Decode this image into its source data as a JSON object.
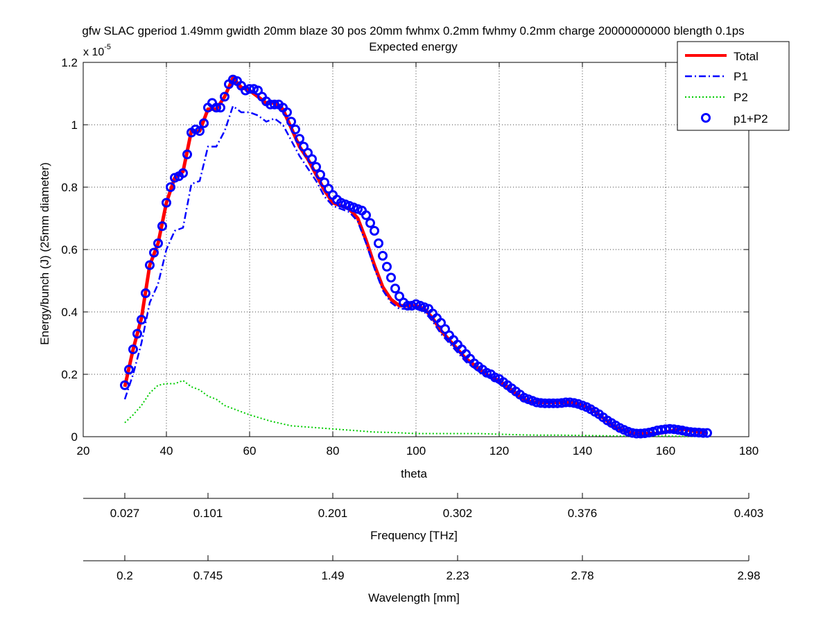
{
  "chart_data": {
    "type": "line",
    "title": "gfw SLAC gperiod 1.49mm gwidth 20mm blaze 30 pos 20mm fwhmx 0.2mm fwhmy 0.2mm charge 20000000000 blength 0.1ps",
    "subtitle": "Expected energy",
    "xlabel": "theta",
    "ylabel": "Energy/bunch (J) (25mm diameter)",
    "y_multiplier_base": "x 10",
    "y_multiplier_exp": "-5",
    "xlim": [
      20,
      180
    ],
    "ylim": [
      0,
      1.2
    ],
    "xticks": [
      20,
      40,
      60,
      80,
      100,
      120,
      140,
      160,
      180
    ],
    "yticks": [
      0,
      0.2,
      0.4,
      0.6,
      0.8,
      1,
      1.2
    ],
    "xtick_labels": [
      "20",
      "40",
      "60",
      "80",
      "100",
      "120",
      "140",
      "160",
      "180"
    ],
    "ytick_labels": [
      "0",
      "0.2",
      "0.4",
      "0.6",
      "0.8",
      "1",
      "1.2"
    ],
    "grid": true,
    "legend_position": "top-right",
    "colors": {
      "total": "#ff0000",
      "p1": "#0000ff",
      "p2": "#00cc00",
      "p1p2": "#0000ff"
    },
    "series": [
      {
        "name": "Total",
        "style": "solid-thick",
        "x": [
          30,
          32,
          34,
          36,
          38,
          40,
          42,
          44,
          46,
          48,
          50,
          52,
          54,
          56,
          58,
          60,
          62,
          64,
          66,
          68,
          70,
          72,
          74,
          76,
          78,
          80,
          82,
          84,
          86,
          88,
          90,
          92,
          94,
          96,
          98,
          100,
          102,
          104,
          106,
          108,
          110,
          112,
          114,
          116,
          118,
          120,
          122,
          124,
          126,
          128,
          130,
          132,
          134,
          136,
          138,
          140,
          142,
          144,
          146,
          148,
          150,
          152,
          154,
          156,
          158,
          160,
          162,
          164,
          166,
          168,
          170
        ],
        "values": [
          0.16,
          0.28,
          0.38,
          0.55,
          0.62,
          0.75,
          0.83,
          0.85,
          0.98,
          0.98,
          1.05,
          1.05,
          1.09,
          1.15,
          1.12,
          1.11,
          1.09,
          1.07,
          1.07,
          1.05,
          0.99,
          0.93,
          0.89,
          0.84,
          0.79,
          0.75,
          0.74,
          0.73,
          0.7,
          0.63,
          0.55,
          0.48,
          0.44,
          0.42,
          0.42,
          0.42,
          0.41,
          0.38,
          0.34,
          0.31,
          0.28,
          0.25,
          0.23,
          0.21,
          0.19,
          0.18,
          0.16,
          0.14,
          0.12,
          0.11,
          0.11,
          0.11,
          0.11,
          0.11,
          0.11,
          0.1,
          0.09,
          0.07,
          0.05,
          0.03,
          0.02,
          0.01,
          0.01,
          0.01,
          0.01,
          0.015,
          0.02,
          0.025,
          0.02,
          0.015,
          0.012
        ]
      },
      {
        "name": "P1",
        "style": "dash-dot",
        "x": [
          30,
          32,
          34,
          36,
          38,
          40,
          42,
          44,
          46,
          48,
          50,
          52,
          54,
          56,
          58,
          60,
          62,
          64,
          66,
          68,
          70,
          72,
          74,
          76,
          78,
          80,
          82,
          84,
          86,
          88,
          90,
          92,
          94,
          96,
          98,
          100,
          102,
          104,
          106,
          108,
          110,
          112,
          114,
          116,
          118,
          120,
          122,
          124,
          126,
          128,
          130,
          132,
          134,
          136,
          138,
          140,
          142,
          144,
          146,
          148,
          150,
          152,
          154,
          156,
          158,
          160,
          162,
          164,
          166,
          168,
          170
        ],
        "values": [
          0.12,
          0.2,
          0.3,
          0.43,
          0.49,
          0.6,
          0.66,
          0.67,
          0.81,
          0.82,
          0.93,
          0.93,
          0.98,
          1.06,
          1.04,
          1.04,
          1.03,
          1.01,
          1.02,
          1.0,
          0.95,
          0.9,
          0.86,
          0.82,
          0.77,
          0.74,
          0.73,
          0.72,
          0.69,
          0.62,
          0.54,
          0.47,
          0.43,
          0.41,
          0.41,
          0.41,
          0.4,
          0.37,
          0.33,
          0.3,
          0.27,
          0.24,
          0.22,
          0.2,
          0.19,
          0.17,
          0.15,
          0.14,
          0.12,
          0.11,
          0.11,
          0.11,
          0.11,
          0.11,
          0.1,
          0.1,
          0.09,
          0.07,
          0.05,
          0.03,
          0.02,
          0.01,
          0.01,
          0.01,
          0.01,
          0.015,
          0.02,
          0.025,
          0.02,
          0.015,
          0.012
        ]
      },
      {
        "name": "P2",
        "style": "dotted",
        "x": [
          30,
          32,
          34,
          36,
          38,
          40,
          42,
          44,
          46,
          48,
          50,
          52,
          54,
          56,
          58,
          60,
          65,
          70,
          75,
          80,
          85,
          90,
          95,
          100,
          105,
          110,
          115,
          120,
          125,
          130,
          135,
          140,
          145,
          150,
          155,
          160,
          165,
          170
        ],
        "values": [
          0.045,
          0.07,
          0.1,
          0.14,
          0.165,
          0.17,
          0.17,
          0.18,
          0.16,
          0.15,
          0.13,
          0.12,
          0.1,
          0.09,
          0.08,
          0.07,
          0.05,
          0.035,
          0.03,
          0.025,
          0.02,
          0.015,
          0.013,
          0.01,
          0.01,
          0.01,
          0.01,
          0.008,
          0.006,
          0.005,
          0.005,
          0.004,
          0.003,
          0.002,
          0.002,
          0.002,
          0.001,
          0.001
        ]
      },
      {
        "name": "p1+P2",
        "style": "circles",
        "x": [
          30,
          31,
          32,
          33,
          34,
          35,
          36,
          37,
          38,
          39,
          40,
          41,
          42,
          43,
          44,
          45,
          46,
          47,
          48,
          49,
          50,
          51,
          52,
          53,
          54,
          55,
          56,
          57,
          58,
          59,
          60,
          61,
          62,
          63,
          64,
          65,
          66,
          67,
          68,
          69,
          70,
          71,
          72,
          73,
          74,
          75,
          76,
          77,
          78,
          79,
          80,
          81,
          82,
          83,
          84,
          85,
          86,
          87,
          88,
          89,
          90,
          91,
          92,
          93,
          94,
          95,
          96,
          97,
          98,
          99,
          100,
          101,
          102,
          103,
          104,
          105,
          106,
          107,
          108,
          109,
          110,
          111,
          112,
          113,
          114,
          115,
          116,
          117,
          118,
          119,
          120,
          121,
          122,
          123,
          124,
          125,
          126,
          127,
          128,
          129,
          130,
          131,
          132,
          133,
          134,
          135,
          136,
          137,
          138,
          139,
          140,
          141,
          142,
          143,
          144,
          145,
          146,
          147,
          148,
          149,
          150,
          151,
          152,
          153,
          154,
          155,
          156,
          157,
          158,
          159,
          160,
          161,
          162,
          163,
          164,
          165,
          166,
          167,
          168,
          169,
          170
        ],
        "values": [
          0.165,
          0.215,
          0.28,
          0.33,
          0.375,
          0.46,
          0.55,
          0.59,
          0.62,
          0.675,
          0.75,
          0.8,
          0.83,
          0.835,
          0.845,
          0.905,
          0.975,
          0.985,
          0.98,
          1.005,
          1.055,
          1.07,
          1.055,
          1.055,
          1.09,
          1.13,
          1.145,
          1.14,
          1.125,
          1.11,
          1.115,
          1.115,
          1.11,
          1.09,
          1.075,
          1.065,
          1.065,
          1.065,
          1.055,
          1.04,
          1.01,
          0.985,
          0.955,
          0.93,
          0.91,
          0.89,
          0.865,
          0.84,
          0.815,
          0.795,
          0.775,
          0.76,
          0.75,
          0.745,
          0.74,
          0.735,
          0.73,
          0.725,
          0.71,
          0.685,
          0.66,
          0.62,
          0.58,
          0.545,
          0.51,
          0.475,
          0.45,
          0.43,
          0.42,
          0.42,
          0.425,
          0.42,
          0.415,
          0.41,
          0.395,
          0.38,
          0.365,
          0.345,
          0.325,
          0.31,
          0.295,
          0.28,
          0.265,
          0.25,
          0.235,
          0.225,
          0.215,
          0.205,
          0.2,
          0.19,
          0.185,
          0.175,
          0.165,
          0.155,
          0.145,
          0.135,
          0.125,
          0.12,
          0.115,
          0.11,
          0.108,
          0.107,
          0.107,
          0.107,
          0.107,
          0.108,
          0.11,
          0.11,
          0.108,
          0.105,
          0.1,
          0.095,
          0.088,
          0.08,
          0.072,
          0.062,
          0.052,
          0.044,
          0.036,
          0.028,
          0.022,
          0.016,
          0.012,
          0.01,
          0.01,
          0.011,
          0.013,
          0.016,
          0.02,
          0.022,
          0.024,
          0.025,
          0.024,
          0.022,
          0.02,
          0.017,
          0.015,
          0.014,
          0.013,
          0.012,
          0.012
        ]
      }
    ],
    "secondary_axes": [
      {
        "label": "Frequency [THz]",
        "ticks": [
          30,
          50,
          80,
          110,
          140,
          180
        ],
        "tick_labels": [
          "0.027",
          "0.101",
          "0.201",
          "0.302",
          "0.376",
          "0.403"
        ]
      },
      {
        "label": "Wavelength [mm]",
        "ticks": [
          30,
          50,
          80,
          110,
          140,
          180
        ],
        "tick_labels": [
          "0.2",
          "0.745",
          "1.49",
          "2.23",
          "2.78",
          "2.98"
        ]
      }
    ]
  }
}
